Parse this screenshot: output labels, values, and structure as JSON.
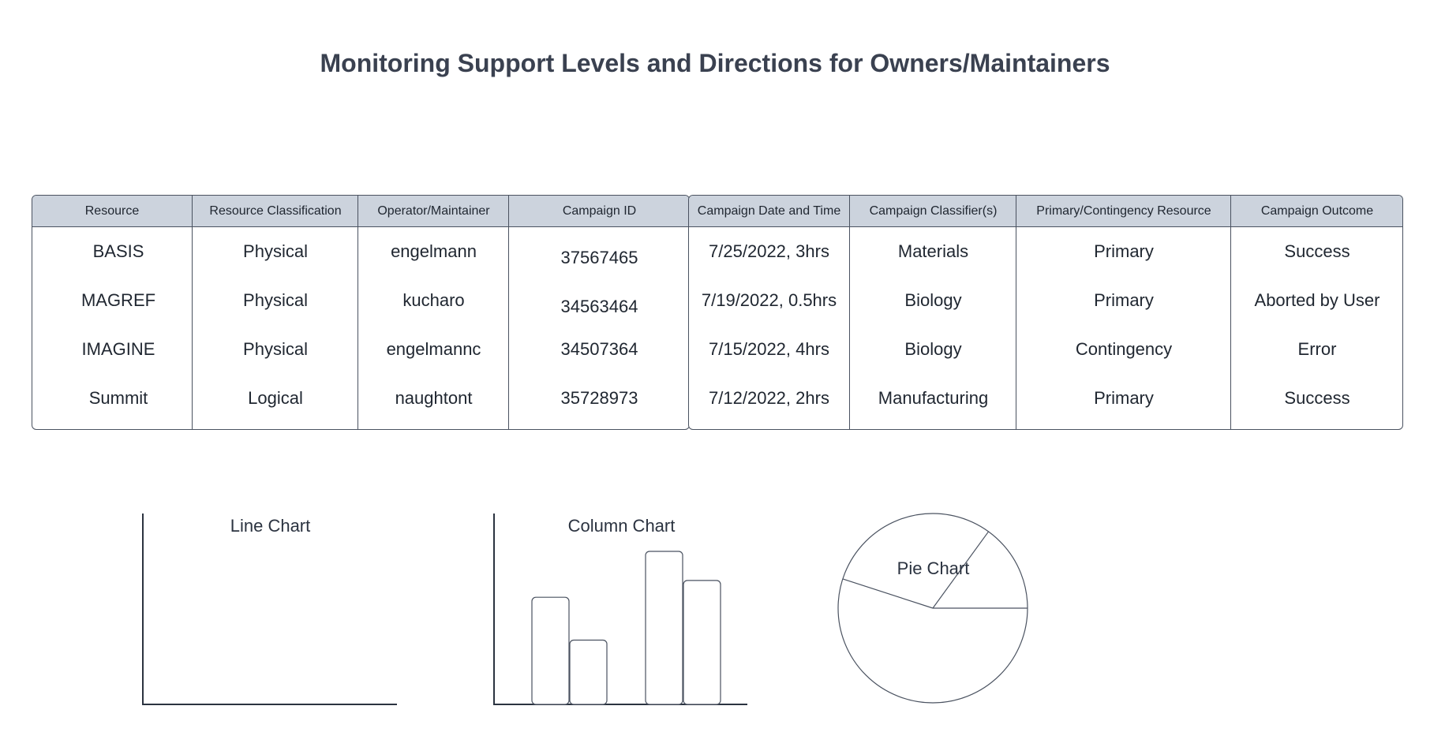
{
  "title": "Monitoring Support Levels and Directions for Owners/Maintainers",
  "table": {
    "headers": [
      "Resource",
      "Resource Classification",
      "Operator/Maintainer",
      "Campaign ID",
      "Campaign Date and Time",
      "Campaign Classifier(s)",
      "Primary/Contingency Resource",
      "Campaign Outcome"
    ],
    "rows": [
      [
        "BASIS",
        "Physical",
        "engelmann",
        "37567465",
        "7/25/2022, 3hrs",
        "Materials",
        "Primary",
        "Success"
      ],
      [
        "MAGREF",
        "Physical",
        "kucharo",
        "34563464",
        "7/19/2022, 0.5hrs",
        "Biology",
        "Primary",
        "Aborted by User"
      ],
      [
        "IMAGINE",
        "Physical",
        "engelmannc",
        "34507364",
        "7/15/2022, 4hrs",
        "Biology",
        "Contingency",
        "Error"
      ],
      [
        "Summit",
        "Logical",
        "naughtont",
        "35728973",
        "7/12/2022, 2hrs",
        "Manufacturing",
        "Primary",
        "Success"
      ]
    ]
  },
  "line_chart": {
    "label": "Line Chart"
  },
  "column_chart": {
    "label": "Column Chart"
  },
  "pie_chart": {
    "label": "Pie Chart"
  },
  "colors": {
    "header_bg": "#ccd3dd",
    "border": "#4a5260",
    "text": "#1f2630"
  },
  "chart_data": [
    {
      "type": "line",
      "title": "Line Chart",
      "series": []
    },
    {
      "type": "bar",
      "title": "Column Chart",
      "values": [
        7,
        4.2,
        10,
        8.1
      ]
    },
    {
      "type": "pie",
      "title": "Pie Chart",
      "values": [
        0.55,
        0.3,
        0.15
      ]
    }
  ]
}
